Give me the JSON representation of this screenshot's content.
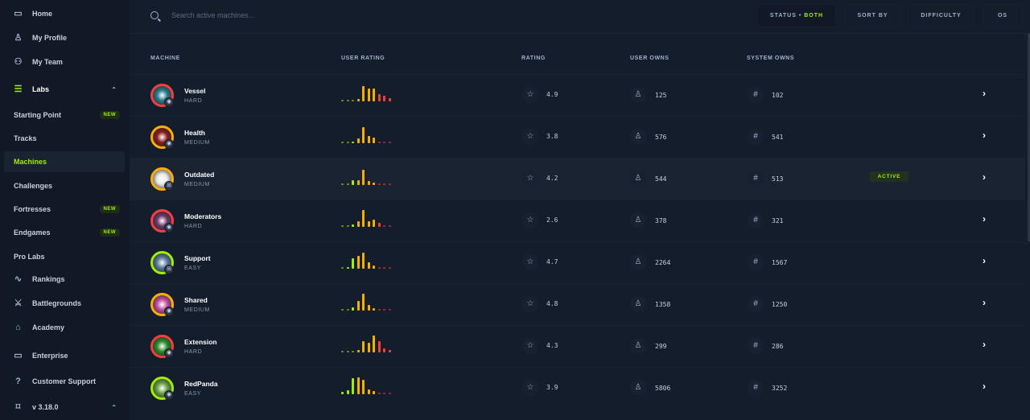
{
  "sidebar": {
    "items": [
      {
        "label": "Home",
        "icon": "monitor-icon"
      },
      {
        "label": "My Profile",
        "icon": "user-icon"
      },
      {
        "label": "My Team",
        "icon": "users-icon"
      },
      {
        "label": "Labs",
        "icon": "server-icon"
      },
      {
        "label": "Starting Point",
        "badge": "NEW"
      },
      {
        "label": "Tracks"
      },
      {
        "label": "Machines"
      },
      {
        "label": "Challenges"
      },
      {
        "label": "Fortresses",
        "badge": "NEW"
      },
      {
        "label": "Endgames",
        "badge": "NEW"
      },
      {
        "label": "Pro Labs"
      },
      {
        "label": "Rankings",
        "icon": "activity-icon"
      },
      {
        "label": "Battlegrounds",
        "icon": "swords-icon"
      },
      {
        "label": "Academy",
        "icon": "graduation-cap-icon"
      },
      {
        "label": "Enterprise",
        "icon": "laptop-icon"
      },
      {
        "label": "Customer Support",
        "icon": "help-circle-icon"
      },
      {
        "label": "v 3.18.0",
        "icon": "tag-icon"
      }
    ]
  },
  "search": {
    "placeholder": "Search active machines..."
  },
  "filters": {
    "status_label": "STATUS",
    "status_sep": "•",
    "status_value": "BOTH",
    "sort": "SORT BY",
    "difficulty": "DIFFICULTY",
    "os": "OS"
  },
  "columns": {
    "machine": "MACHINE",
    "user_rating": "USER RATING",
    "rating": "RATING",
    "user_owns": "USER OWNS",
    "system_owns": "SYSTEM OWNS"
  },
  "colors": {
    "accent": "#9fef00",
    "easy": "#9fef00",
    "medium": "#ffaf00",
    "hard": "#ff3e3e",
    "rating_low": "#9fef00",
    "rating_mid": "#ffaf00",
    "rating_high": "#ff3e3e"
  },
  "machines": [
    {
      "name": "Vessel",
      "difficulty": "HARD",
      "os": "linux",
      "rating": "4.9",
      "user_owns": "125",
      "system_owns": "102",
      "rating_distribution": [
        5,
        5,
        5,
        15,
        90,
        75,
        75,
        45,
        35,
        20
      ]
    },
    {
      "name": "Health",
      "difficulty": "MEDIUM",
      "os": "linux",
      "rating": "3.8",
      "user_owns": "576",
      "system_owns": "541",
      "rating_distribution": [
        5,
        5,
        10,
        30,
        95,
        45,
        35,
        5,
        5,
        5
      ]
    },
    {
      "name": "Outdated",
      "difficulty": "MEDIUM",
      "os": "windows",
      "rating": "4.2",
      "user_owns": "544",
      "system_owns": "513",
      "status": "ACTIVE",
      "rating_distribution": [
        5,
        5,
        30,
        30,
        90,
        25,
        15,
        5,
        5,
        5
      ]
    },
    {
      "name": "Moderators",
      "difficulty": "HARD",
      "os": "linux",
      "rating": "2.6",
      "user_owns": "378",
      "system_owns": "321",
      "rating_distribution": [
        5,
        5,
        15,
        35,
        100,
        35,
        45,
        25,
        5,
        5
      ]
    },
    {
      "name": "Support",
      "difficulty": "EASY",
      "os": "windows",
      "rating": "4.7",
      "user_owns": "2264",
      "system_owns": "1567",
      "rating_distribution": [
        5,
        10,
        60,
        75,
        95,
        40,
        20,
        5,
        5,
        5
      ]
    },
    {
      "name": "Shared",
      "difficulty": "MEDIUM",
      "os": "linux",
      "rating": "4.8",
      "user_owns": "1358",
      "system_owns": "1250",
      "rating_distribution": [
        5,
        5,
        20,
        55,
        100,
        35,
        15,
        5,
        5,
        5
      ]
    },
    {
      "name": "Extension",
      "difficulty": "HARD",
      "os": "linux",
      "rating": "4.3",
      "user_owns": "299",
      "system_owns": "286",
      "rating_distribution": [
        5,
        5,
        5,
        15,
        65,
        55,
        100,
        65,
        25,
        15
      ]
    },
    {
      "name": "RedPanda",
      "difficulty": "EASY",
      "os": "linux",
      "rating": "3.9",
      "user_owns": "5806",
      "system_owns": "3252",
      "rating_distribution": [
        15,
        25,
        95,
        100,
        85,
        30,
        20,
        5,
        5,
        5
      ]
    }
  ]
}
